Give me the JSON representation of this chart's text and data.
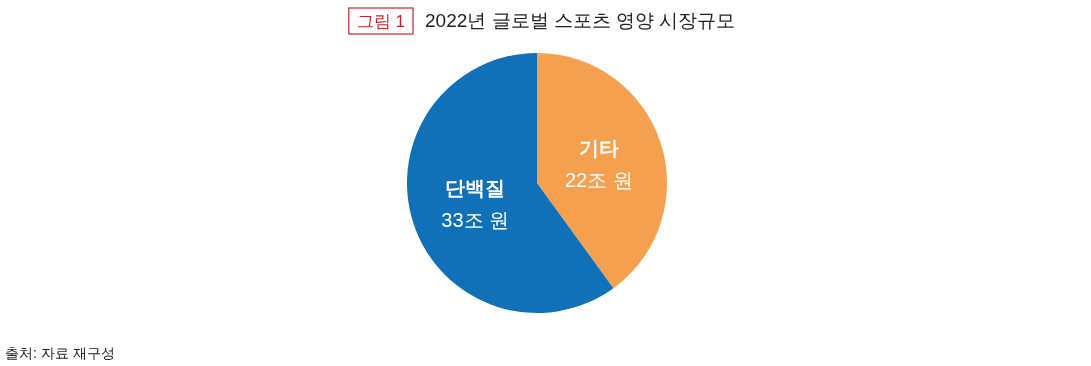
{
  "chart_data": {
    "type": "pie",
    "title": "2022년 글로벌 스포츠 영양 시장규모",
    "annotations": [
      "그림 1",
      "출처: 자료 재구성"
    ],
    "categories": [
      "기타",
      "단백질"
    ],
    "values": [
      22,
      33
    ],
    "colors": [
      "#f5a04f",
      "#1070b8"
    ],
    "value_labels": [
      "22조 원",
      "33조 원"
    ]
  }
}
